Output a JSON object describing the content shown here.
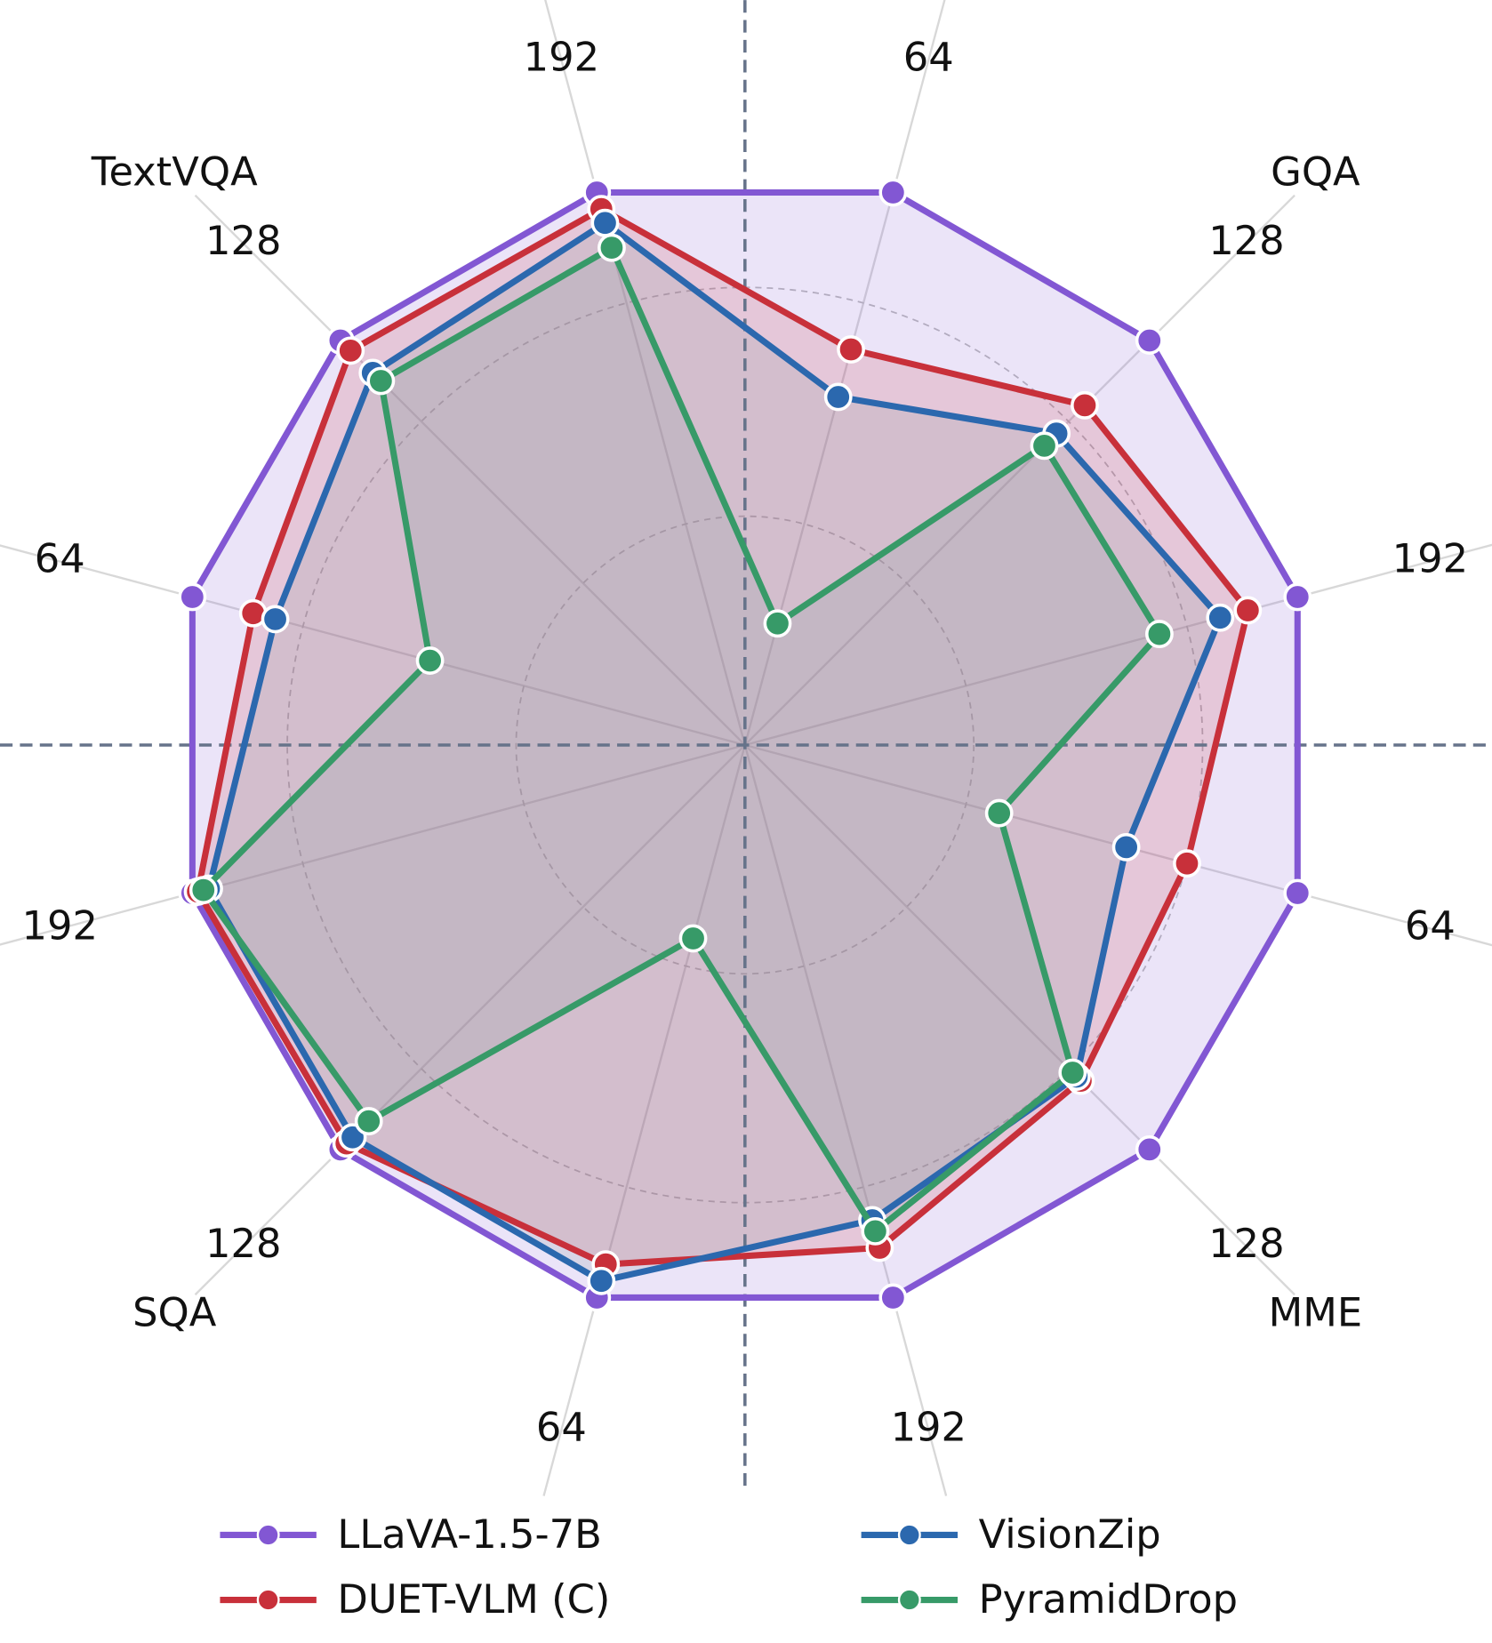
{
  "chart_data": {
    "type": "radar",
    "categories": [
      "64",
      "128",
      "192",
      "64",
      "128",
      "192",
      "64",
      "128",
      "192",
      "64",
      "128",
      "192"
    ],
    "groups": [
      "GQA",
      "MME",
      "SQA",
      "TextVQA"
    ],
    "rlim": [
      0,
      100
    ],
    "rticks": [
      40,
      80
    ],
    "grid": true,
    "legend": "bottom",
    "series": [
      {
        "name": "LLaVA-1.5-7B",
        "color": "#8257d3",
        "values": [
          100,
          100,
          100,
          100,
          100,
          100,
          100,
          100,
          100,
          100,
          100,
          100
        ]
      },
      {
        "name": "DUET-VLM (C)",
        "color": "#c8303a",
        "values": [
          71.6,
          84,
          91,
          80,
          83,
          91,
          94,
          98.5,
          99,
          89,
          97.5,
          97
        ]
      },
      {
        "name": "VisionZip",
        "color": "#2b68ae",
        "values": [
          63,
          77,
          86,
          69,
          82,
          86,
          97,
          97,
          97,
          85,
          92,
          94.5
        ]
      },
      {
        "name": "PyramidDrop",
        "color": "#379a68",
        "values": [
          22,
          74,
          75,
          46,
          81,
          88,
          35,
          93,
          98,
          57,
          90,
          90
        ]
      }
    ]
  }
}
